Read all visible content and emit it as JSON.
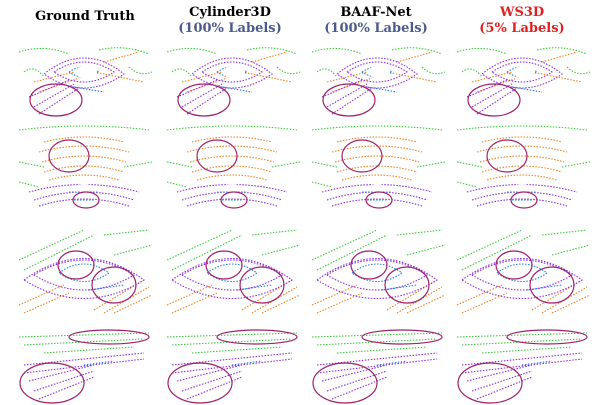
{
  "columns": [
    {
      "title": "Ground Truth"
    },
    {
      "title": "Cylinder3D",
      "subtitle": "(100% Labels)"
    },
    {
      "title": "BAAF-Net",
      "subtitle": "(100% Labels)"
    },
    {
      "title": "WS3D",
      "subtitle": "(5% Labels)"
    }
  ]
}
